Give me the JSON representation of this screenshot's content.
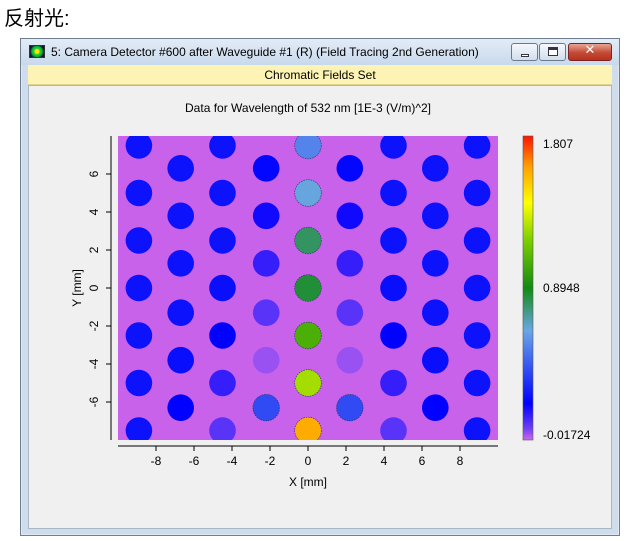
{
  "caption": "反射光:",
  "window": {
    "title": "5: Camera Detector #600 after Waveguide #1 (R) (Field Tracing 2nd Generation)",
    "icons": {
      "app": "detector-app-icon",
      "minimize": "minimize-icon",
      "maximize": "maximize-icon",
      "close": "close-icon"
    },
    "close_glyph": "✕"
  },
  "subtitle": "Chromatic Fields Set",
  "chart_data": {
    "type": "heatmap",
    "title": "Data for Wavelength of 532 nm  [1E-3 (V/m)^2]",
    "xlabel": "X [mm]",
    "ylabel": "Y [mm]",
    "xlim": [
      -10,
      10
    ],
    "ylim": [
      -8,
      8
    ],
    "xticks": [
      -8,
      -6,
      -4,
      -2,
      0,
      2,
      4,
      6,
      8
    ],
    "yticks": [
      -6,
      -4,
      -2,
      0,
      2,
      4,
      6
    ],
    "colorbar": {
      "min": -0.01724,
      "mid": 0.8948,
      "max": 1.807,
      "labels": [
        "1.807",
        "0.8948",
        "-0.01724"
      ]
    },
    "background_value": 0.13,
    "spot_diameter_mm": 1.4,
    "columns": [
      {
        "x": -8.9,
        "y": [
          -7.5,
          -5.0,
          -2.5,
          0.0,
          2.5,
          5.0,
          7.5
        ],
        "v": [
          0.25,
          0.25,
          0.25,
          0.25,
          0.25,
          0.25,
          0.25
        ]
      },
      {
        "x": -6.7,
        "y": [
          -6.3,
          -3.8,
          -1.3,
          1.3,
          3.8,
          6.3
        ],
        "v": [
          0.2,
          0.24,
          0.25,
          0.25,
          0.25,
          0.25
        ]
      },
      {
        "x": -4.5,
        "y": [
          -7.5,
          -5.0,
          -2.5,
          0.0,
          2.5,
          5.0,
          7.5
        ],
        "v": [
          0.08,
          0.13,
          0.2,
          0.24,
          0.25,
          0.25,
          0.25
        ]
      },
      {
        "x": -2.2,
        "y": [
          -6.3,
          -3.8,
          -1.3,
          1.3,
          3.8,
          6.3
        ],
        "v": [
          0.4,
          0.02,
          0.08,
          0.13,
          0.18,
          0.22
        ]
      },
      {
        "x": 0.0,
        "y": [
          -7.5,
          -5.0,
          -2.5,
          0.0,
          2.5,
          5.0,
          7.5
        ],
        "v": [
          1.6,
          1.25,
          1.05,
          0.85,
          0.8,
          0.65,
          0.55
        ]
      },
      {
        "x": 2.2,
        "y": [
          -6.3,
          -3.8,
          -1.3,
          1.3,
          3.8,
          6.3
        ],
        "v": [
          0.4,
          0.02,
          0.08,
          0.13,
          0.18,
          0.22
        ]
      },
      {
        "x": 4.5,
        "y": [
          -7.5,
          -5.0,
          -2.5,
          0.0,
          2.5,
          5.0,
          7.5
        ],
        "v": [
          0.08,
          0.13,
          0.2,
          0.24,
          0.25,
          0.25,
          0.25
        ]
      },
      {
        "x": 6.7,
        "y": [
          -6.3,
          -3.8,
          -1.3,
          1.3,
          3.8,
          6.3
        ],
        "v": [
          0.2,
          0.24,
          0.25,
          0.25,
          0.25,
          0.25
        ]
      },
      {
        "x": 8.9,
        "y": [
          -7.5,
          -5.0,
          -2.5,
          0.0,
          2.5,
          5.0,
          7.5
        ],
        "v": [
          0.25,
          0.25,
          0.25,
          0.25,
          0.25,
          0.25,
          0.25
        ]
      }
    ]
  }
}
